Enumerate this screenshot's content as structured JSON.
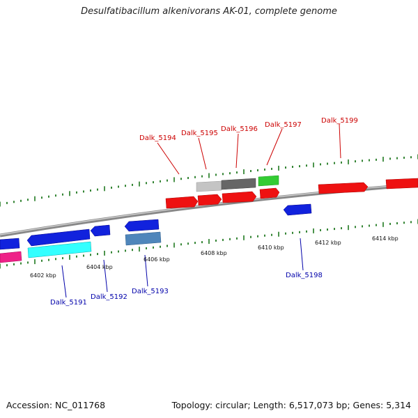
{
  "title": "Desulfatibacillum alkenivorans AK-01, complete genome",
  "footer": {
    "accession": "Accession: NC_011768",
    "summary": "Topology: circular; Length: 6,517,073 bp; Genes: 5,314"
  },
  "colors": {
    "forward_label": "#cc0000",
    "reverse_label": "#0000aa",
    "tick": "#006600",
    "backbone": "#8a8a8a"
  },
  "ticks": [
    "6402 kbp",
    "6404 kbp",
    "6406 kbp",
    "6408 kbp",
    "6410 kbp",
    "6412 kbp",
    "6414 kbp"
  ],
  "forward_labels": [
    "Dalk_5194",
    "Dalk_5195",
    "Dalk_5196",
    "Dalk_5197",
    "Dalk_5199"
  ],
  "reverse_labels": [
    "Dalk_5191",
    "Dalk_5192",
    "Dalk_5193",
    "Dalk_5198"
  ]
}
